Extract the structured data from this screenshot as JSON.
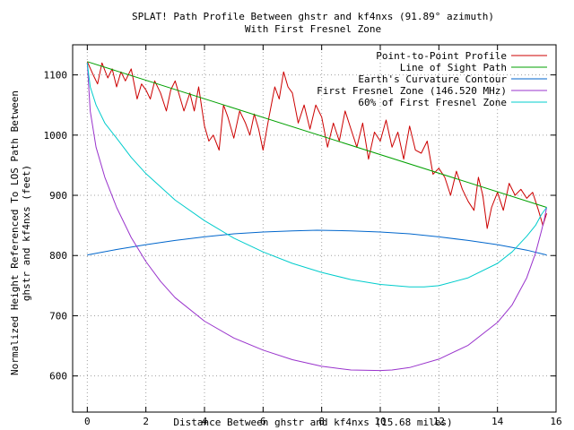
{
  "chart_data": {
    "type": "line",
    "title": "SPLAT! Path Profile Between ghstr and kf4nxs (91.89° azimuth)",
    "subtitle": "With First Fresnel Zone",
    "xlabel": "Distance Between ghstr and kf4nxs (15.68 miles)",
    "ylabel_lines": [
      "Normalized Height Referenced To LOS Path Between",
      "ghstr and kf4nxs (feet)"
    ],
    "xlim": [
      -0.5,
      16
    ],
    "ylim": [
      540,
      1150
    ],
    "x_ticks": [
      0,
      2,
      4,
      6,
      8,
      10,
      12,
      14,
      16
    ],
    "y_ticks": [
      600,
      700,
      800,
      900,
      1000,
      1100
    ],
    "grid": true,
    "legend_position": "top-right",
    "series": [
      {
        "name": "Point-to-Point Profile",
        "color": "#cc0000",
        "x": [
          0,
          0.2,
          0.35,
          0.5,
          0.7,
          0.85,
          1.0,
          1.15,
          1.3,
          1.5,
          1.7,
          1.85,
          2.0,
          2.15,
          2.3,
          2.5,
          2.7,
          2.85,
          3.0,
          3.15,
          3.3,
          3.5,
          3.65,
          3.8,
          4.0,
          4.15,
          4.3,
          4.5,
          4.65,
          4.8,
          5.0,
          5.2,
          5.4,
          5.55,
          5.7,
          5.85,
          6.0,
          6.2,
          6.4,
          6.55,
          6.7,
          6.85,
          7.0,
          7.2,
          7.4,
          7.6,
          7.8,
          8.0,
          8.2,
          8.4,
          8.6,
          8.8,
          9.0,
          9.2,
          9.4,
          9.6,
          9.8,
          10.0,
          10.2,
          10.4,
          10.6,
          10.8,
          11.0,
          11.2,
          11.4,
          11.6,
          11.8,
          12.0,
          12.2,
          12.4,
          12.6,
          12.8,
          13.0,
          13.2,
          13.35,
          13.5,
          13.65,
          13.8,
          14.0,
          14.2,
          14.4,
          14.6,
          14.8,
          15.0,
          15.2,
          15.4,
          15.55,
          15.68
        ],
        "y": [
          1122,
          1100,
          1085,
          1120,
          1095,
          1110,
          1080,
          1105,
          1090,
          1110,
          1060,
          1085,
          1075,
          1060,
          1090,
          1070,
          1040,
          1075,
          1090,
          1065,
          1040,
          1070,
          1040,
          1080,
          1015,
          990,
          1000,
          975,
          1050,
          1030,
          995,
          1040,
          1020,
          1000,
          1035,
          1010,
          975,
          1030,
          1080,
          1060,
          1105,
          1080,
          1070,
          1020,
          1050,
          1010,
          1050,
          1030,
          980,
          1020,
          990,
          1040,
          1010,
          980,
          1020,
          960,
          1005,
          990,
          1025,
          980,
          1005,
          960,
          1015,
          975,
          970,
          990,
          935,
          945,
          930,
          900,
          940,
          910,
          890,
          875,
          930,
          900,
          845,
          880,
          905,
          875,
          920,
          900,
          910,
          895,
          905,
          875,
          850,
          870
        ]
      },
      {
        "name": "Line of Sight Path",
        "color": "#00a000",
        "x": [
          0,
          15.68
        ],
        "y": [
          1122,
          880
        ]
      },
      {
        "name": "Earth's Curvature Contour",
        "color": "#0066cc",
        "x": [
          0,
          1,
          2,
          3,
          4,
          5,
          6,
          7,
          7.84,
          9,
          10,
          11,
          12,
          13,
          14,
          15,
          15.68
        ],
        "y": [
          801,
          810,
          818,
          825,
          831,
          836,
          839,
          841,
          842,
          841,
          839,
          836,
          831,
          825,
          818,
          809,
          801
        ]
      },
      {
        "name": "First Fresnel Zone (146.520 MHz)",
        "color": "#9933cc",
        "x": [
          0,
          0.1,
          0.3,
          0.6,
          1,
          1.5,
          2,
          2.5,
          3,
          4,
          5,
          6,
          7,
          8,
          9,
          10,
          10.4,
          11,
          12,
          13,
          14,
          14.5,
          15,
          15.3,
          15.5,
          15.6,
          15.68
        ],
        "y": [
          1120,
          1040,
          980,
          930,
          880,
          830,
          790,
          757,
          730,
          691,
          663,
          643,
          627,
          616,
          610,
          609,
          610,
          614,
          628,
          651,
          689,
          718,
          763,
          804,
          841,
          860,
          880
        ]
      },
      {
        "name": "60% of First Fresnel Zone",
        "color": "#00cccc",
        "x": [
          0,
          0.1,
          0.3,
          0.6,
          1,
          1.5,
          2,
          3,
          4,
          5,
          6,
          7,
          8,
          9,
          10,
          11,
          11.5,
          12,
          13,
          14,
          14.5,
          15,
          15.3,
          15.5,
          15.68
        ],
        "y": [
          1120,
          1080,
          1050,
          1020,
          995,
          963,
          936,
          892,
          858,
          829,
          806,
          787,
          772,
          760,
          752,
          748,
          748,
          750,
          763,
          787,
          806,
          832,
          850,
          868,
          880
        ]
      }
    ]
  }
}
